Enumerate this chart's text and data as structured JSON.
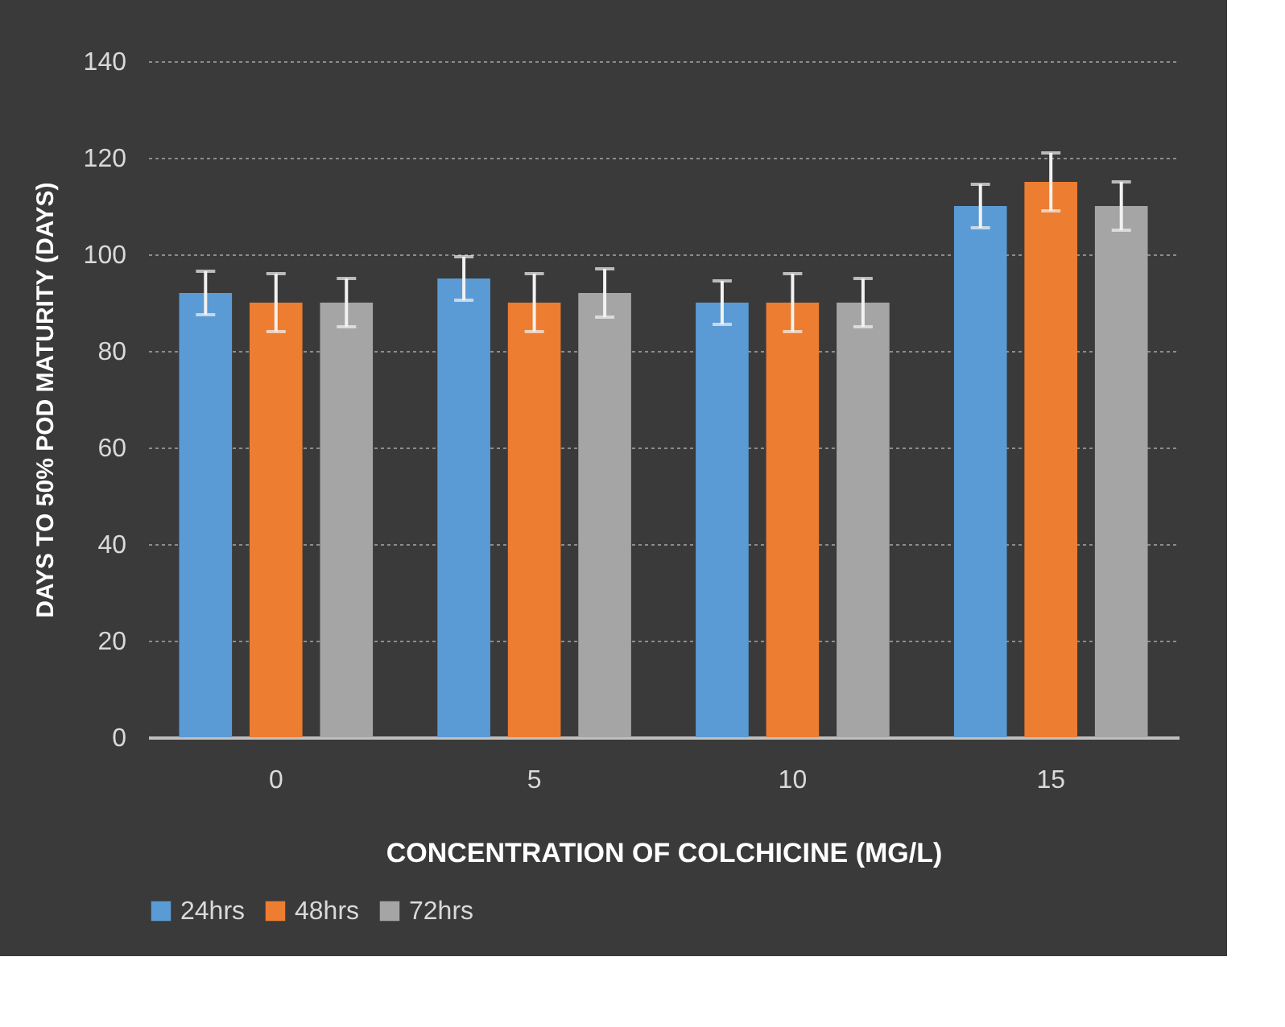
{
  "chart_data": {
    "type": "bar",
    "xlabel": "CONCENTRATION OF COLCHICINE (MG/L)",
    "ylabel": "DAYS TO 50%  POD MATURITY (DAYS)",
    "categories": [
      "0",
      "5",
      "10",
      "15"
    ],
    "series": [
      {
        "name": "24hrs",
        "color": "#5b9bd5",
        "values": [
          92,
          95,
          90,
          110
        ],
        "errors": [
          4.5,
          4.5,
          4.5,
          4.5
        ]
      },
      {
        "name": "48hrs",
        "color": "#ed7d31",
        "values": [
          90,
          90,
          90,
          115
        ],
        "errors": [
          6,
          6,
          6,
          6
        ]
      },
      {
        "name": "72hrs",
        "color": "#a5a5a5",
        "values": [
          90,
          92,
          90,
          110
        ],
        "errors": [
          5,
          5,
          5,
          5
        ]
      }
    ],
    "ylim": [
      0,
      140
    ],
    "yticks": [
      0,
      20,
      40,
      60,
      80,
      100,
      120,
      140
    ],
    "grid": "y",
    "legend": "bottom"
  }
}
